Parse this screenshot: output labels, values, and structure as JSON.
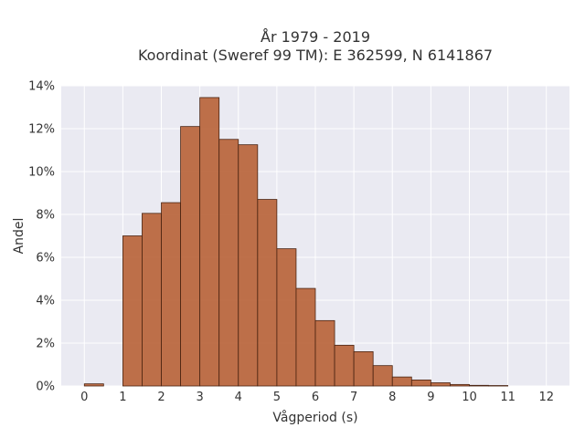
{
  "chart_data": {
    "type": "bar",
    "title_line1": "År 1979 - 2019",
    "title_line2": "Koordinat (Sweref 99 TM): E 362599, N 6141867",
    "xlabel": "Vågperiod (s)",
    "ylabel": "Andel",
    "xlim": [
      -0.6,
      12.6
    ],
    "ylim": [
      0,
      14
    ],
    "x_ticks": [
      0,
      1,
      2,
      3,
      4,
      5,
      6,
      7,
      8,
      9,
      10,
      11,
      12
    ],
    "y_ticks": [
      0,
      2,
      4,
      6,
      8,
      10,
      12,
      14
    ],
    "y_tick_suffix": "%",
    "bin_width": 0.5,
    "bins": [
      {
        "x0": 0.0,
        "value": 0.1
      },
      {
        "x0": 1.0,
        "value": 7.0
      },
      {
        "x0": 1.5,
        "value": 8.05
      },
      {
        "x0": 2.0,
        "value": 8.55
      },
      {
        "x0": 2.5,
        "value": 12.1
      },
      {
        "x0": 3.0,
        "value": 13.45
      },
      {
        "x0": 3.5,
        "value": 11.5
      },
      {
        "x0": 4.0,
        "value": 11.25
      },
      {
        "x0": 4.5,
        "value": 8.7
      },
      {
        "x0": 5.0,
        "value": 6.4
      },
      {
        "x0": 5.5,
        "value": 4.55
      },
      {
        "x0": 6.0,
        "value": 3.05
      },
      {
        "x0": 6.5,
        "value": 1.9
      },
      {
        "x0": 7.0,
        "value": 1.6
      },
      {
        "x0": 7.5,
        "value": 0.95
      },
      {
        "x0": 8.0,
        "value": 0.42
      },
      {
        "x0": 8.5,
        "value": 0.28
      },
      {
        "x0": 9.0,
        "value": 0.15
      },
      {
        "x0": 9.5,
        "value": 0.07
      },
      {
        "x0": 10.0,
        "value": 0.03
      },
      {
        "x0": 10.5,
        "value": 0.02
      }
    ],
    "grid": true,
    "colors": {
      "bar_fill": "#b5592b",
      "bar_edge": "#4a2412",
      "plot_bg": "#eaeaf2",
      "grid": "#ffffff"
    }
  }
}
